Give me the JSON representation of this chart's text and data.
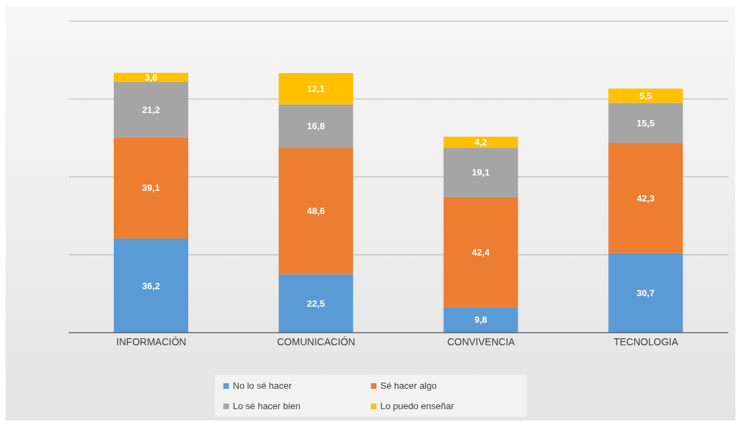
{
  "chart_data": {
    "type": "bar",
    "stacked": true,
    "categories": [
      "INFORMACIÓN",
      "COMUNICACIÓN",
      "CONVIVENCIA",
      "TECNOLOGIA"
    ],
    "series": [
      {
        "name": "No lo sé hacer",
        "color": "#5b9bd5",
        "values": [
          36.2,
          22.5,
          9.8,
          30.7
        ],
        "value_labels": [
          "36,2",
          "22,5",
          "9,8",
          "30,7"
        ]
      },
      {
        "name": "Sé hacer algo",
        "color": "#ed7d31",
        "values": [
          39.1,
          48.6,
          42.4,
          42.3
        ],
        "value_labels": [
          "39,1",
          "48,6",
          "42,4",
          "42,3"
        ]
      },
      {
        "name": "Lo sé hacer bien",
        "color": "#a5a5a5",
        "values": [
          21.2,
          16.8,
          19.1,
          15.5
        ],
        "value_labels": [
          "21,2",
          "16,8",
          "19,1",
          "15,5"
        ]
      },
      {
        "name": "Lo puedo enseñar",
        "color": "#ffc000",
        "values": [
          3.6,
          12.1,
          4.2,
          5.5
        ],
        "value_labels": [
          "3,6",
          "12,1",
          "4,2",
          "5,5"
        ]
      }
    ],
    "tick_labels": "x",
    "grid": "y",
    "legend": "bottom"
  }
}
